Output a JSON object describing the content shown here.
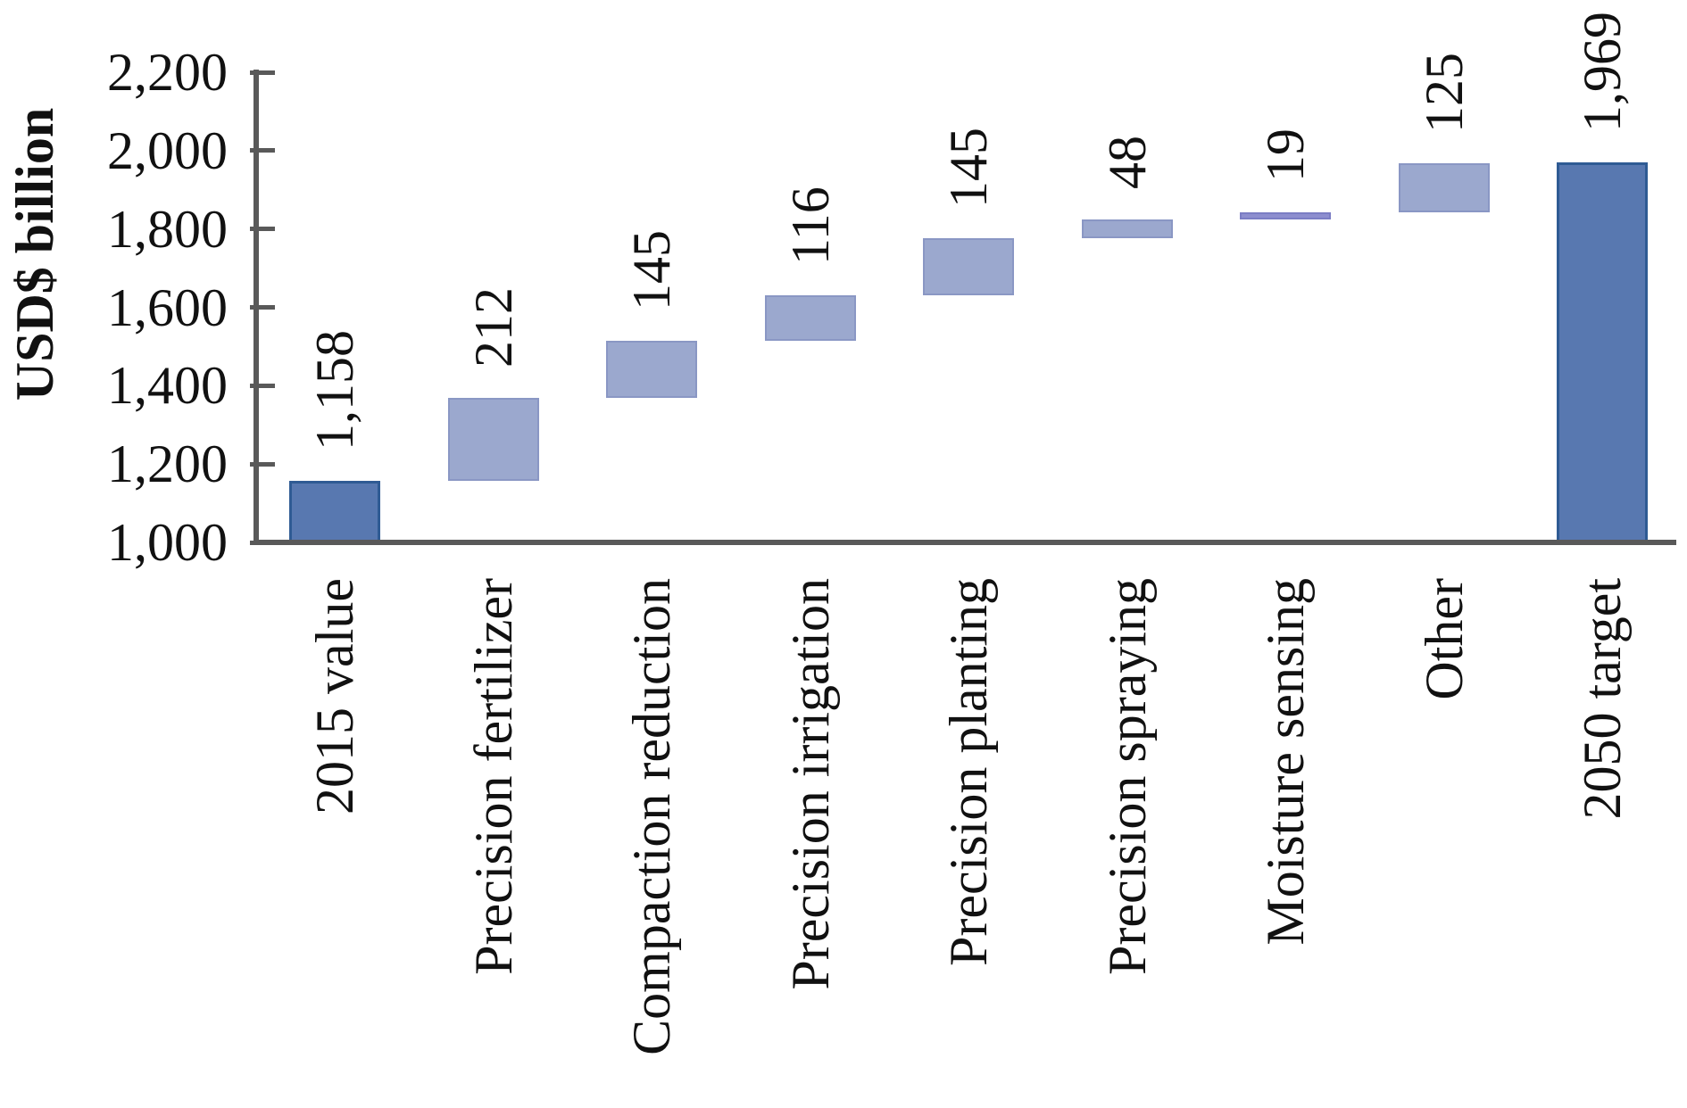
{
  "chart_data": {
    "type": "bar",
    "subtype": "waterfall",
    "title": "",
    "ylabel": "USD$ billion",
    "xlabel": "",
    "ylim": [
      1000,
      2200
    ],
    "ytick_step": 200,
    "ytick_labels": [
      "1,000",
      "1,200",
      "1,400",
      "1,600",
      "1,800",
      "2,000",
      "2,200"
    ],
    "grid": "off",
    "legend": "none",
    "categories": [
      "2015 value",
      "Precision fertilizer",
      "Compaction reduction",
      "Precision irrigation",
      "Precision planting",
      "Precision spraying",
      "Moisture sensing",
      "Other",
      "2050 target"
    ],
    "values": [
      1158,
      212,
      145,
      116,
      145,
      48,
      19,
      125,
      1969
    ],
    "value_labels": [
      "1,158",
      "212",
      "145",
      "116",
      "145",
      "48",
      "19",
      "125",
      "1,969"
    ],
    "bar_kinds": [
      "total",
      "delta",
      "delta",
      "delta",
      "delta",
      "delta",
      "thin",
      "delta",
      "total"
    ],
    "cumulative_tops": [
      1158,
      1370,
      1515,
      1631,
      1776,
      1824,
      1843,
      1968,
      1969
    ],
    "colors": {
      "total_fill": "#5878b0",
      "total_border": "#2f5b94",
      "delta_fill": "#9ba8ce",
      "delta_border": "#8a97c4",
      "thin_fill": "#8d8ecf",
      "thin_border": "#7b7dc4",
      "axis": "#595959",
      "text": "#111111"
    }
  }
}
